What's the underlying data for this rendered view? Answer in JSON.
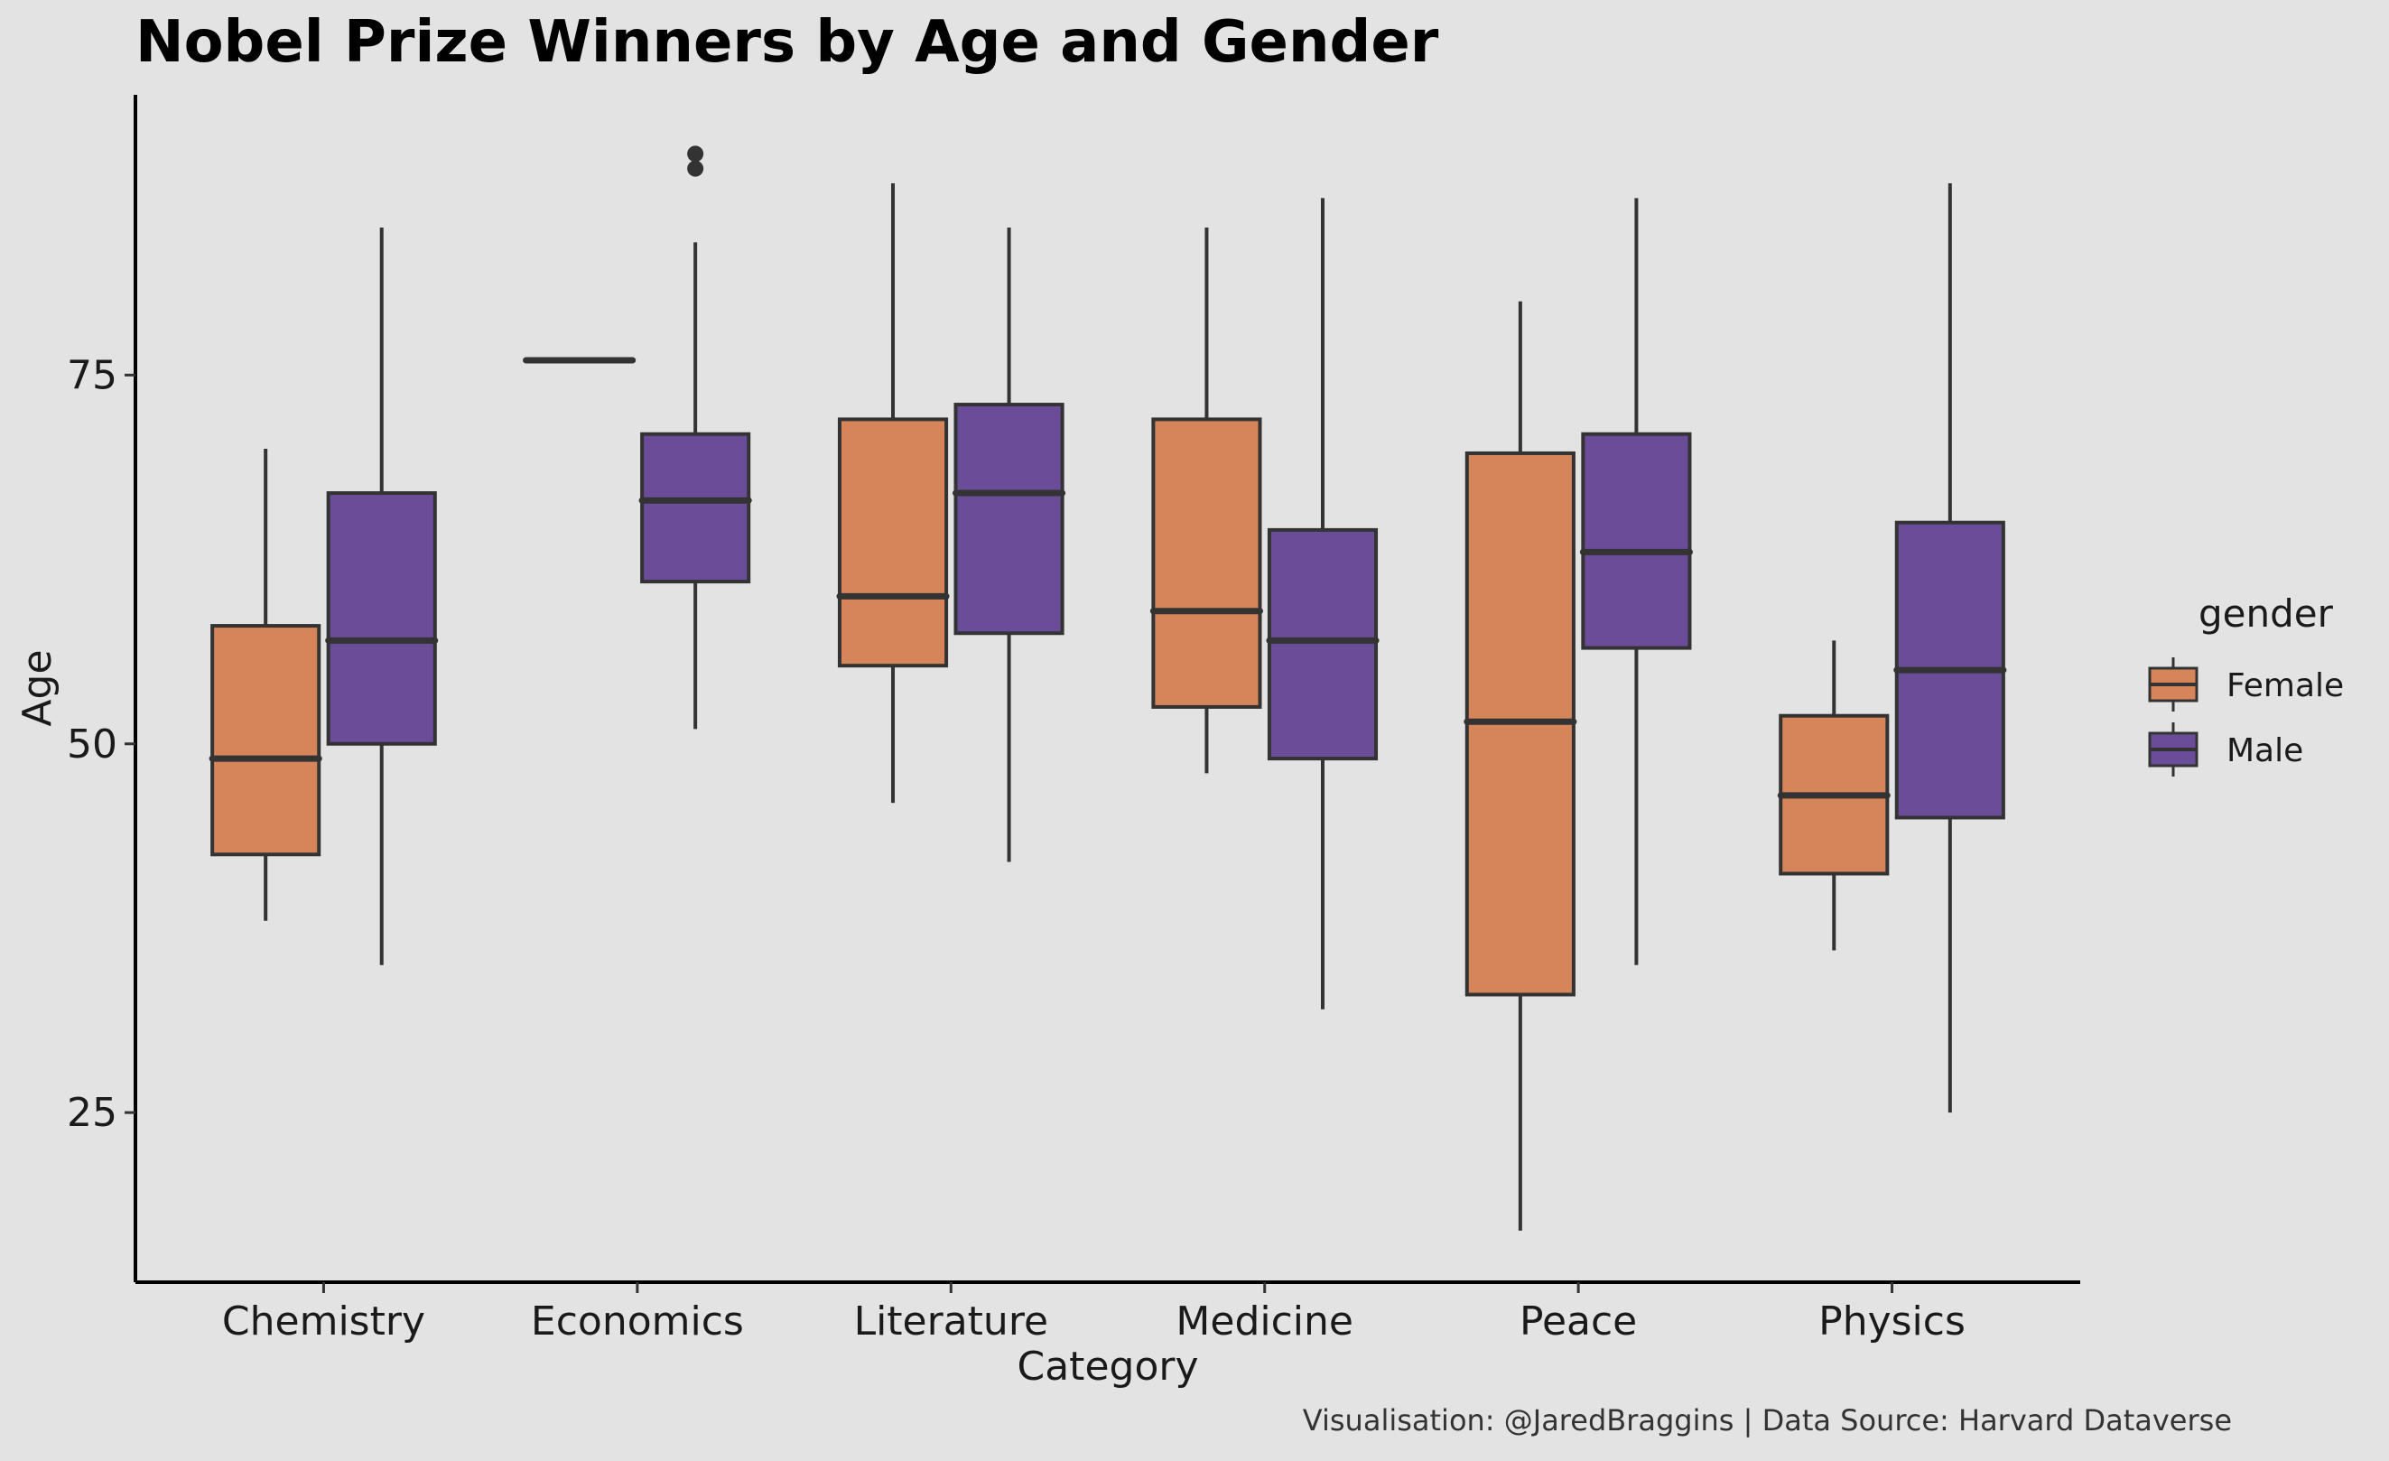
{
  "chart_data": {
    "type": "boxplot",
    "title": "Nobel Prize Winners by Age and Gender",
    "xlabel": "Category",
    "ylabel": "Age",
    "ylim": [
      13.5,
      94
    ],
    "yticks": [
      25,
      50,
      75
    ],
    "grid": false,
    "legend_position": "right",
    "legend_title": "gender",
    "categories": [
      "Chemistry",
      "Economics",
      "Literature",
      "Medicine",
      "Peace",
      "Physics"
    ],
    "series": [
      {
        "name": "Female",
        "color": "#d6845a",
        "boxes": [
          {
            "min": 38,
            "q1": 42.5,
            "median": 49,
            "q3": 58,
            "max": 70,
            "outliers": []
          },
          {
            "min": 76,
            "q1": 76,
            "median": 76,
            "q3": 76,
            "max": 76,
            "outliers": []
          },
          {
            "min": 46,
            "q1": 55.3,
            "median": 60,
            "q3": 72,
            "max": 88,
            "outliers": []
          },
          {
            "min": 48,
            "q1": 52.5,
            "median": 59,
            "q3": 72,
            "max": 85,
            "outliers": []
          },
          {
            "min": 17,
            "q1": 33,
            "median": 51.5,
            "q3": 69.7,
            "max": 80,
            "outliers": []
          },
          {
            "min": 36,
            "q1": 41.2,
            "median": 46.5,
            "q3": 51.9,
            "max": 57,
            "outliers": []
          }
        ]
      },
      {
        "name": "Male",
        "color": "#6b4c98",
        "boxes": [
          {
            "min": 35,
            "q1": 50,
            "median": 57,
            "q3": 67,
            "max": 85,
            "outliers": []
          },
          {
            "min": 51,
            "q1": 61,
            "median": 66.5,
            "q3": 71,
            "max": 84,
            "outliers": [
              89,
              90
            ]
          },
          {
            "min": 42,
            "q1": 57.5,
            "median": 67,
            "q3": 73,
            "max": 85,
            "outliers": []
          },
          {
            "min": 32,
            "q1": 49,
            "median": 57,
            "q3": 64.5,
            "max": 87,
            "outliers": []
          },
          {
            "min": 35,
            "q1": 56.5,
            "median": 63,
            "q3": 71,
            "max": 87,
            "outliers": []
          },
          {
            "min": 25,
            "q1": 45,
            "median": 55,
            "q3": 65,
            "max": 88,
            "outliers": []
          }
        ]
      }
    ],
    "caption": "Visualisation: @JaredBraggins | Data Source: Harvard Dataverse"
  }
}
